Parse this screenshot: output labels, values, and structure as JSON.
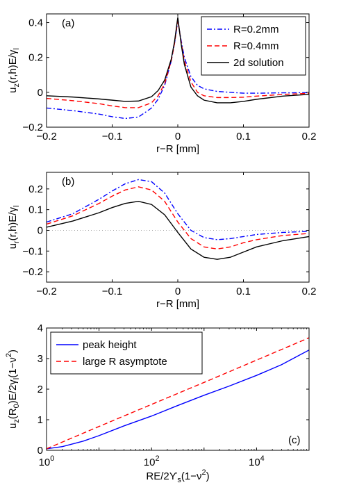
{
  "chart_data": [
    {
      "type": "line",
      "panel": "(a)",
      "xlabel": "r−R [mm]",
      "ylabel": {
        "base": "u",
        "sub1": "z",
        "mid": "(r,h)E/γ",
        "sub2": "l"
      },
      "xlim": [
        -0.2,
        0.2
      ],
      "ylim": [
        -0.2,
        0.45
      ],
      "xticks": [
        -0.2,
        -0.1,
        0,
        0.1,
        0.2
      ],
      "xtick_labels": [
        "−0.2",
        "−0.1",
        "0",
        "0.1",
        "0.2"
      ],
      "yticks": [
        -0.2,
        0,
        0.2,
        0.4
      ],
      "ytick_labels": [
        "−0.2",
        "0",
        "0.2",
        "0.4"
      ],
      "legend_position": "top-right",
      "series": [
        {
          "name": "R=0.2mm",
          "color": "#0000ff",
          "style": "dashdot",
          "x": [
            -0.2,
            -0.16,
            -0.12,
            -0.1,
            -0.08,
            -0.06,
            -0.04,
            -0.03,
            -0.02,
            -0.01,
            -0.005,
            0,
            0.005,
            0.01,
            0.02,
            0.03,
            0.04,
            0.06,
            0.08,
            0.1,
            0.12,
            0.16,
            0.2
          ],
          "y": [
            -0.09,
            -0.105,
            -0.125,
            -0.14,
            -0.15,
            -0.142,
            -0.09,
            -0.04,
            0.04,
            0.18,
            0.28,
            0.41,
            0.3,
            0.2,
            0.09,
            0.04,
            0.02,
            0.005,
            0.0,
            -0.005,
            -0.005,
            -0.003,
            -0.002
          ]
        },
        {
          "name": "R=0.4mm",
          "color": "#ff0000",
          "style": "dashed",
          "x": [
            -0.2,
            -0.16,
            -0.12,
            -0.1,
            -0.08,
            -0.06,
            -0.04,
            -0.03,
            -0.02,
            -0.01,
            -0.005,
            0,
            0.005,
            0.01,
            0.02,
            0.03,
            0.04,
            0.06,
            0.08,
            0.1,
            0.12,
            0.16,
            0.2
          ],
          "y": [
            -0.035,
            -0.048,
            -0.065,
            -0.078,
            -0.088,
            -0.088,
            -0.06,
            -0.02,
            0.05,
            0.18,
            0.28,
            0.415,
            0.29,
            0.18,
            0.06,
            0.0,
            -0.02,
            -0.03,
            -0.03,
            -0.028,
            -0.022,
            -0.012,
            -0.006
          ]
        },
        {
          "name": "2d solution",
          "color": "#000000",
          "style": "solid",
          "x": [
            -0.2,
            -0.16,
            -0.12,
            -0.1,
            -0.08,
            -0.06,
            -0.04,
            -0.03,
            -0.02,
            -0.01,
            -0.005,
            0,
            0.005,
            0.01,
            0.02,
            0.03,
            0.04,
            0.06,
            0.08,
            0.1,
            0.12,
            0.16,
            0.2
          ],
          "y": [
            -0.02,
            -0.027,
            -0.038,
            -0.045,
            -0.052,
            -0.05,
            -0.025,
            0.01,
            0.07,
            0.19,
            0.29,
            0.43,
            0.28,
            0.16,
            0.03,
            -0.02,
            -0.045,
            -0.06,
            -0.06,
            -0.052,
            -0.04,
            -0.022,
            -0.012
          ]
        }
      ]
    },
    {
      "type": "line",
      "panel": "(b)",
      "xlabel": "r−R [mm]",
      "ylabel": {
        "base": "u",
        "sub1": "r",
        "mid": "(r,h)E/γ",
        "sub2": "l"
      },
      "xlim": [
        -0.2,
        0.2
      ],
      "ylim": [
        -0.25,
        0.28
      ],
      "xticks": [
        -0.2,
        -0.1,
        0,
        0.1,
        0.2
      ],
      "xtick_labels": [
        "−0.2",
        "−0.1",
        "0",
        "0.1",
        "0.2"
      ],
      "yticks": [
        -0.2,
        -0.1,
        0,
        0.1,
        0.2
      ],
      "ytick_labels": [
        "−0.2",
        "−0.1",
        "0",
        "0.1",
        "0.2"
      ],
      "zero_line": true,
      "series": [
        {
          "name": "",
          "color": "#0000ff",
          "style": "dashdot",
          "x": [
            -0.2,
            -0.16,
            -0.12,
            -0.1,
            -0.08,
            -0.06,
            -0.04,
            -0.02,
            0,
            0.02,
            0.04,
            0.06,
            0.08,
            0.1,
            0.12,
            0.16,
            0.2
          ],
          "y": [
            0.04,
            0.08,
            0.15,
            0.19,
            0.225,
            0.245,
            0.235,
            0.18,
            0.08,
            0.0,
            -0.035,
            -0.045,
            -0.04,
            -0.03,
            -0.02,
            -0.01,
            -0.005
          ]
        },
        {
          "name": "",
          "color": "#ff0000",
          "style": "dashed",
          "x": [
            -0.2,
            -0.16,
            -0.12,
            -0.1,
            -0.08,
            -0.06,
            -0.04,
            -0.02,
            0,
            0.02,
            0.04,
            0.06,
            0.08,
            0.1,
            0.12,
            0.16,
            0.2
          ],
          "y": [
            0.03,
            0.07,
            0.13,
            0.165,
            0.195,
            0.21,
            0.195,
            0.14,
            0.04,
            -0.04,
            -0.08,
            -0.09,
            -0.08,
            -0.06,
            -0.045,
            -0.025,
            -0.015
          ]
        },
        {
          "name": "",
          "color": "#000000",
          "style": "solid",
          "x": [
            -0.2,
            -0.16,
            -0.12,
            -0.1,
            -0.08,
            -0.06,
            -0.04,
            -0.02,
            0,
            0.02,
            0.04,
            0.06,
            0.08,
            0.1,
            0.12,
            0.16,
            0.2
          ],
          "y": [
            0.015,
            0.045,
            0.085,
            0.11,
            0.13,
            0.14,
            0.125,
            0.075,
            -0.01,
            -0.09,
            -0.13,
            -0.14,
            -0.13,
            -0.105,
            -0.08,
            -0.05,
            -0.03
          ]
        }
      ]
    },
    {
      "type": "line",
      "panel": "(c)",
      "xlabel": {
        "base": "RE/2ϒ",
        "sub": "s",
        "tail": "(1−ν",
        "sup": "2",
        "end": ")"
      },
      "ylabel": {
        "base": "u",
        "sub1": "z",
        "mid1": "(R",
        "sub2": "0",
        "mid2": ")E/2γ",
        "sub3": "l",
        "mid3": "(1−ν",
        "sup": "2",
        "end": ")"
      },
      "xscale": "log",
      "xlim": [
        1,
        100000
      ],
      "ylim": [
        0,
        4
      ],
      "xticks": [
        1,
        100,
        10000
      ],
      "xtick_labels": [
        {
          "base": "10",
          "exp": "0"
        },
        {
          "base": "10",
          "exp": "2"
        },
        {
          "base": "10",
          "exp": "4"
        }
      ],
      "yticks": [
        0,
        1,
        2,
        3,
        4
      ],
      "ytick_labels": [
        "0",
        "1",
        "2",
        "3",
        "4"
      ],
      "legend_position": "top-left",
      "series": [
        {
          "name": "peak height",
          "color": "#0000ff",
          "style": "solid",
          "x": [
            1,
            2,
            5,
            10,
            30,
            100,
            300,
            1000,
            3000,
            10000,
            30000,
            100000
          ],
          "y": [
            0.05,
            0.12,
            0.3,
            0.48,
            0.8,
            1.12,
            1.45,
            1.8,
            2.1,
            2.45,
            2.8,
            3.28
          ]
        },
        {
          "name": "large R asymptote",
          "color": "#ff0000",
          "style": "dashed",
          "x": [
            1,
            10,
            100,
            1000,
            10000,
            100000
          ],
          "y": [
            0.05,
            0.78,
            1.5,
            2.22,
            2.95,
            3.68
          ]
        }
      ]
    }
  ]
}
